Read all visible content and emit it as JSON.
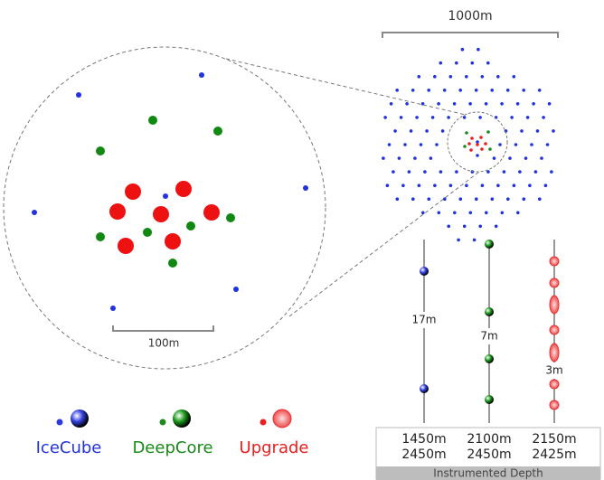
{
  "scale_bars": {
    "array": "1000m",
    "zoom": "100m"
  },
  "spacings": [
    "17m",
    "7m",
    "3m"
  ],
  "legend": [
    "IceCube",
    "DeepCore",
    "Upgrade"
  ],
  "depths": [
    {
      "top": "1450m",
      "bottom": "2450m"
    },
    {
      "top": "2100m",
      "bottom": "2450m"
    },
    {
      "top": "2150m",
      "bottom": "2425m"
    }
  ],
  "depth_caption": "Instrumented Depth"
}
